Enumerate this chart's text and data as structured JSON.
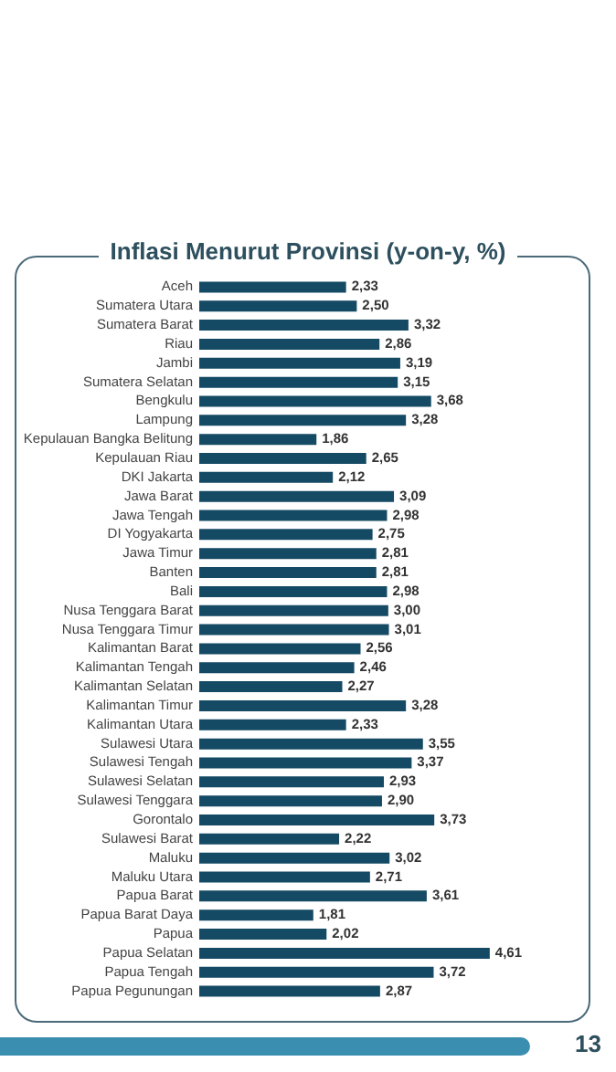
{
  "chart_data": {
    "type": "bar",
    "orientation": "horizontal",
    "title": "Inflasi Menurut Provinsi (y-on-y, %)",
    "categories": [
      "Aceh",
      "Sumatera Utara",
      "Sumatera Barat",
      "Riau",
      "Jambi",
      "Sumatera Selatan",
      "Bengkulu",
      "Lampung",
      "Kepulauan Bangka Belitung",
      "Kepulauan Riau",
      "DKI Jakarta",
      "Jawa Barat",
      "Jawa Tengah",
      "DI Yogyakarta",
      "Jawa Timur",
      "Banten",
      "Bali",
      "Nusa Tenggara Barat",
      "Nusa Tenggara Timur",
      "Kalimantan Barat",
      "Kalimantan Tengah",
      "Kalimantan Selatan",
      "Kalimantan Timur",
      "Kalimantan Utara",
      "Sulawesi Utara",
      "Sulawesi Tengah",
      "Sulawesi Selatan",
      "Sulawesi Tenggara",
      "Gorontalo",
      "Sulawesi Barat",
      "Maluku",
      "Maluku Utara",
      "Papua Barat",
      "Papua Barat Daya",
      "Papua",
      "Papua Selatan",
      "Papua Tengah",
      "Papua Pegunungan"
    ],
    "values": [
      2.33,
      2.5,
      3.32,
      2.86,
      3.19,
      3.15,
      3.68,
      3.28,
      1.86,
      2.65,
      2.12,
      3.09,
      2.98,
      2.75,
      2.81,
      2.81,
      2.98,
      3.0,
      3.01,
      2.56,
      2.46,
      2.27,
      3.28,
      2.33,
      3.55,
      3.37,
      2.93,
      2.9,
      3.73,
      2.22,
      3.02,
      2.71,
      3.61,
      1.81,
      2.02,
      4.61,
      3.72,
      2.87
    ],
    "value_labels": [
      "2,33",
      "2,50",
      "3,32",
      "2,86",
      "3,19",
      "3,15",
      "3,68",
      "3,28",
      "1,86",
      "2,65",
      "2,12",
      "3,09",
      "2,98",
      "2,75",
      "2,81",
      "2,81",
      "2,98",
      "3,00",
      "3,01",
      "2,56",
      "2,46",
      "2,27",
      "3,28",
      "2,33",
      "3,55",
      "3,37",
      "2,93",
      "2,90",
      "3,73",
      "2,22",
      "3,02",
      "2,71",
      "3,61",
      "1,81",
      "2,02",
      "4,61",
      "3,72",
      "2,87"
    ],
    "color": "#154a64",
    "annotations": [
      "13"
    ]
  }
}
